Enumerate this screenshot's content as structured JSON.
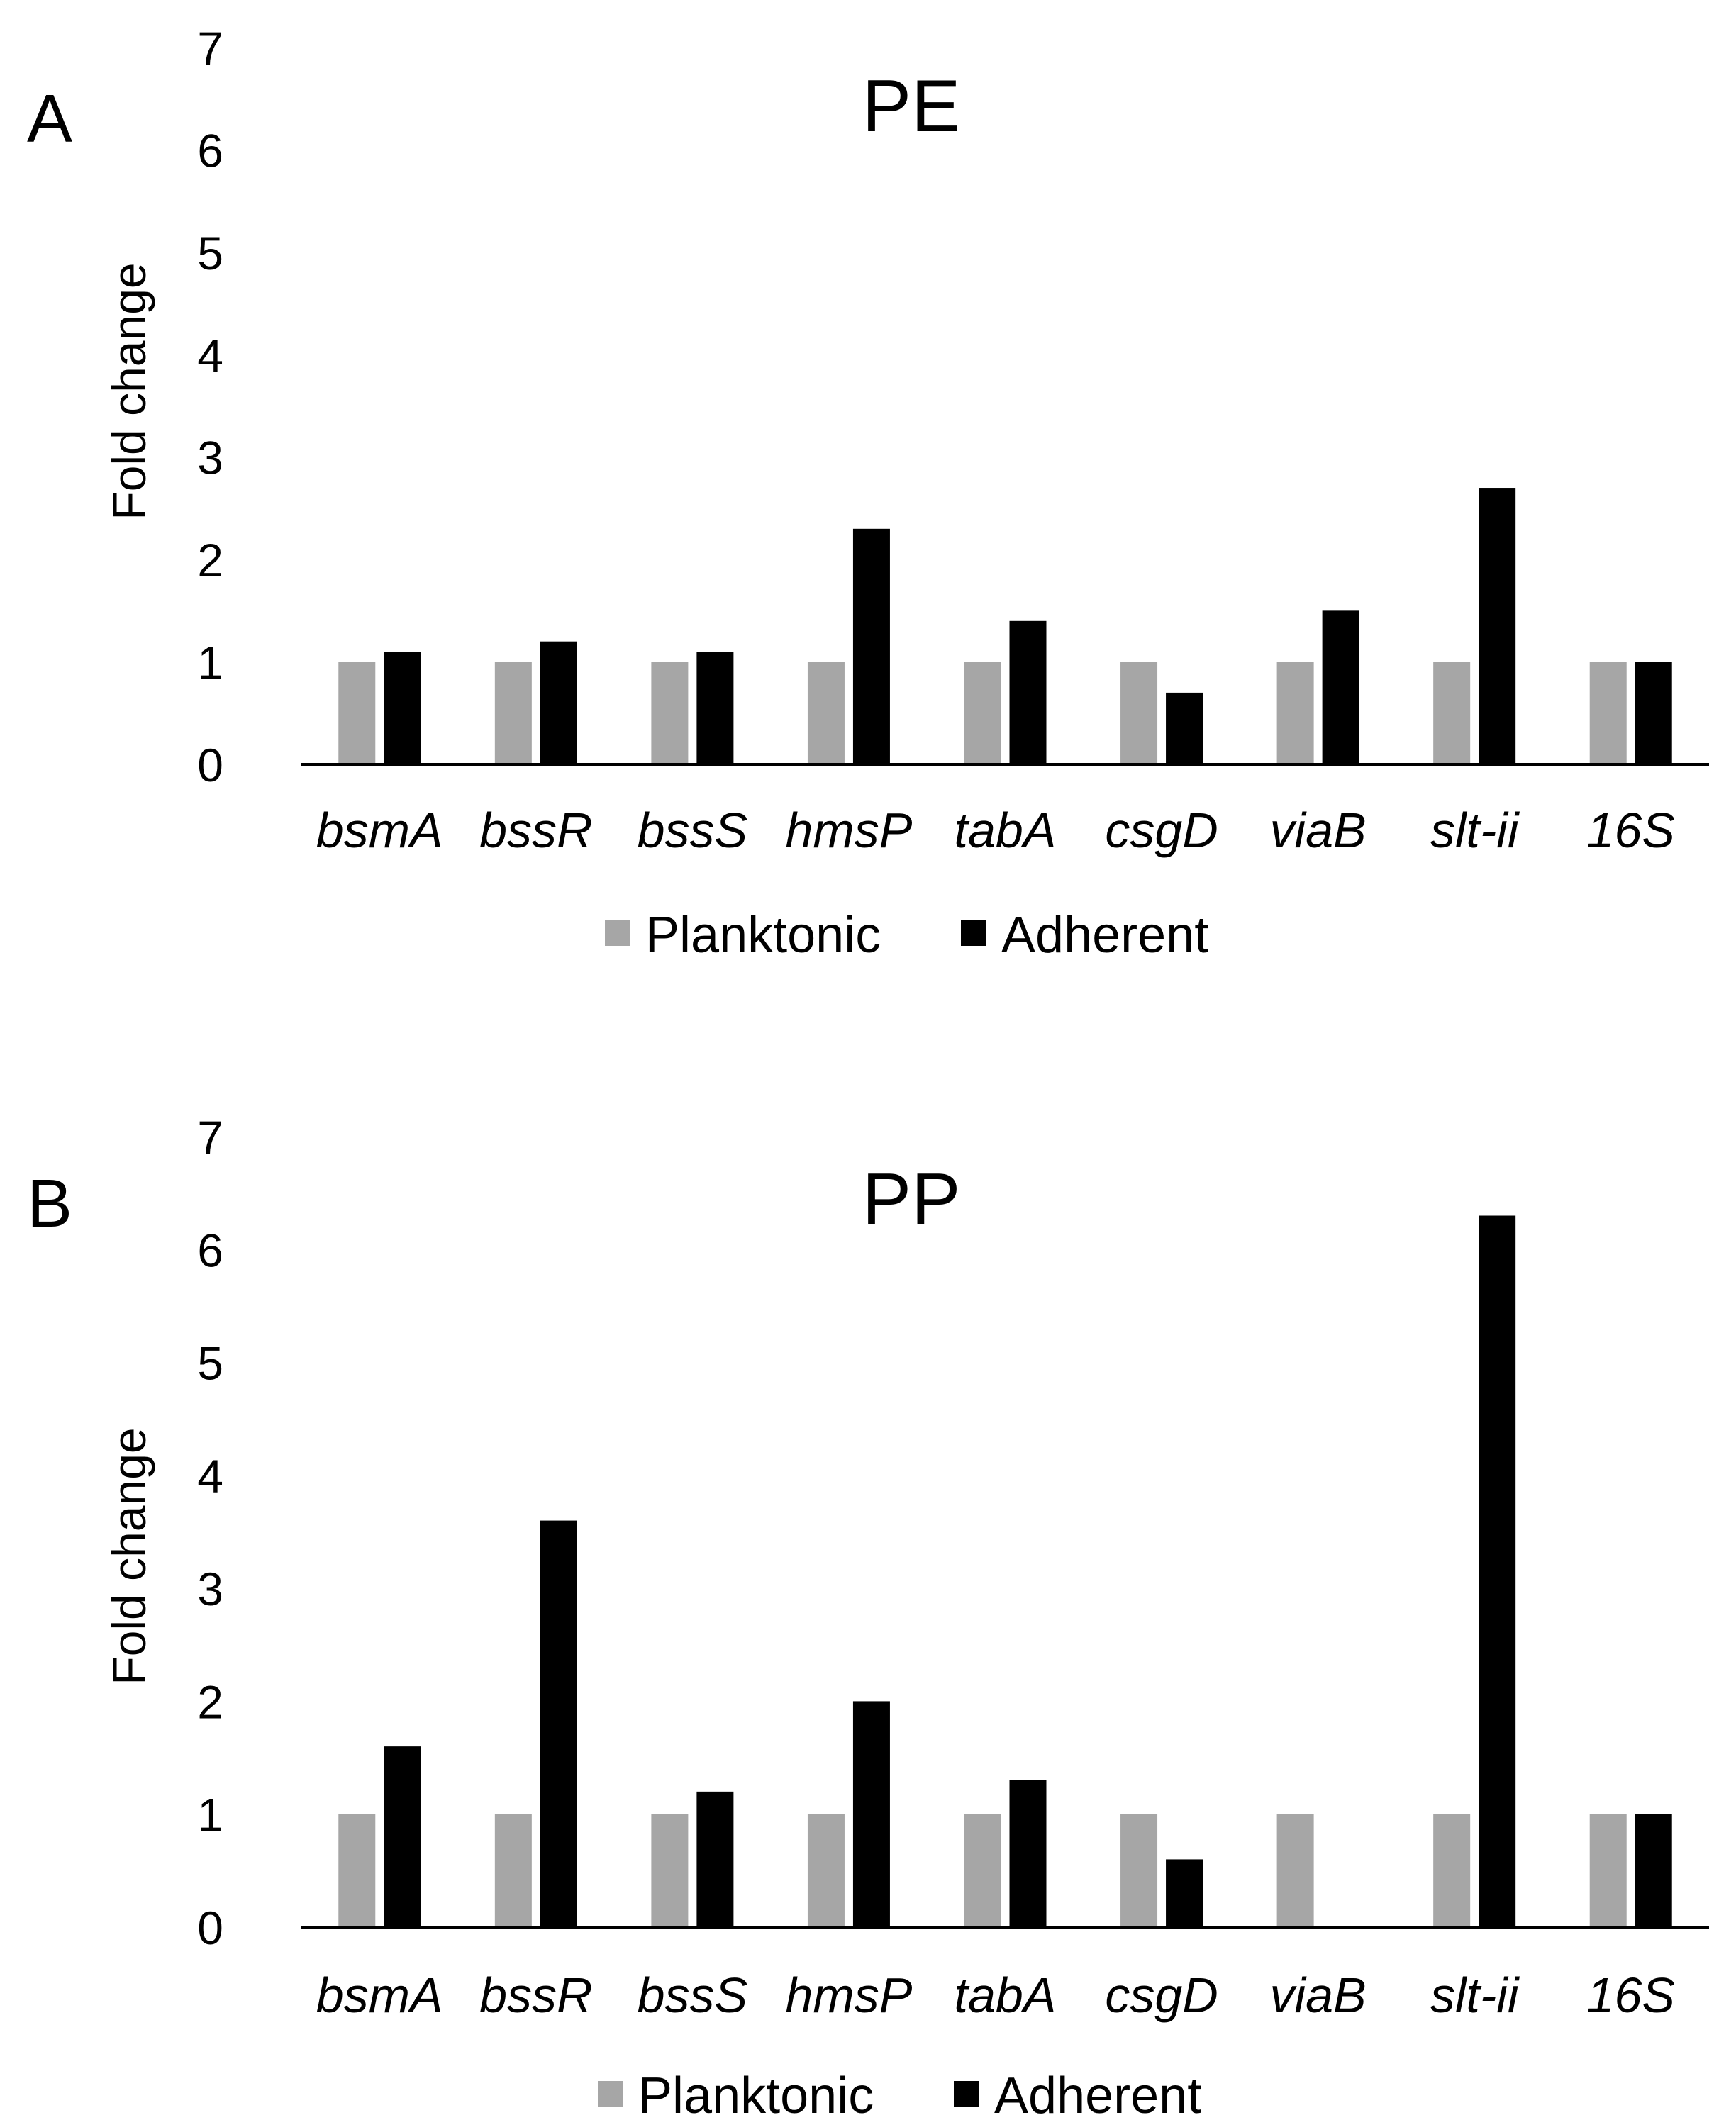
{
  "chart_data": [
    {
      "type": "bar",
      "panel": "A",
      "title": "PE",
      "xlabel": "",
      "ylabel": "Fold change",
      "ylim": [
        0,
        7
      ],
      "yticks": [
        "0",
        "1",
        "2",
        "3",
        "4",
        "5",
        "6",
        "7"
      ],
      "categories": [
        "bsmA",
        "bssR",
        "bssS",
        "hmsP",
        "tabA",
        "csgD",
        "viaB",
        "slt-ii",
        "16S"
      ],
      "series": [
        {
          "name": "Planktonic",
          "color": "#a6a6a6",
          "values": [
            1,
            1,
            1,
            1,
            1,
            1,
            1,
            1,
            1
          ]
        },
        {
          "name": "Adherent",
          "color": "#000000",
          "values": [
            1.1,
            1.2,
            1.1,
            2.3,
            1.4,
            0.7,
            1.5,
            2.7,
            1.0
          ]
        }
      ],
      "legend": "bottom",
      "grid": false
    },
    {
      "type": "bar",
      "panel": "B",
      "title": "PP",
      "xlabel": "",
      "ylabel": "Fold change",
      "ylim": [
        0,
        7
      ],
      "yticks": [
        "0",
        "1",
        "2",
        "3",
        "4",
        "5",
        "6",
        "7"
      ],
      "categories": [
        "bsmA",
        "bssR",
        "bssS",
        "hmsP",
        "tabA",
        "csgD",
        "viaB",
        "slt-ii",
        "16S"
      ],
      "series": [
        {
          "name": "Planktonic",
          "color": "#a6a6a6",
          "values": [
            1,
            1,
            1,
            1,
            1,
            1,
            1,
            1,
            1
          ]
        },
        {
          "name": "Adherent",
          "color": "#000000",
          "values": [
            1.6,
            3.6,
            1.2,
            2.0,
            1.3,
            0.6,
            0,
            6.3,
            1.0
          ]
        }
      ],
      "legend": "bottom",
      "grid": false
    }
  ]
}
